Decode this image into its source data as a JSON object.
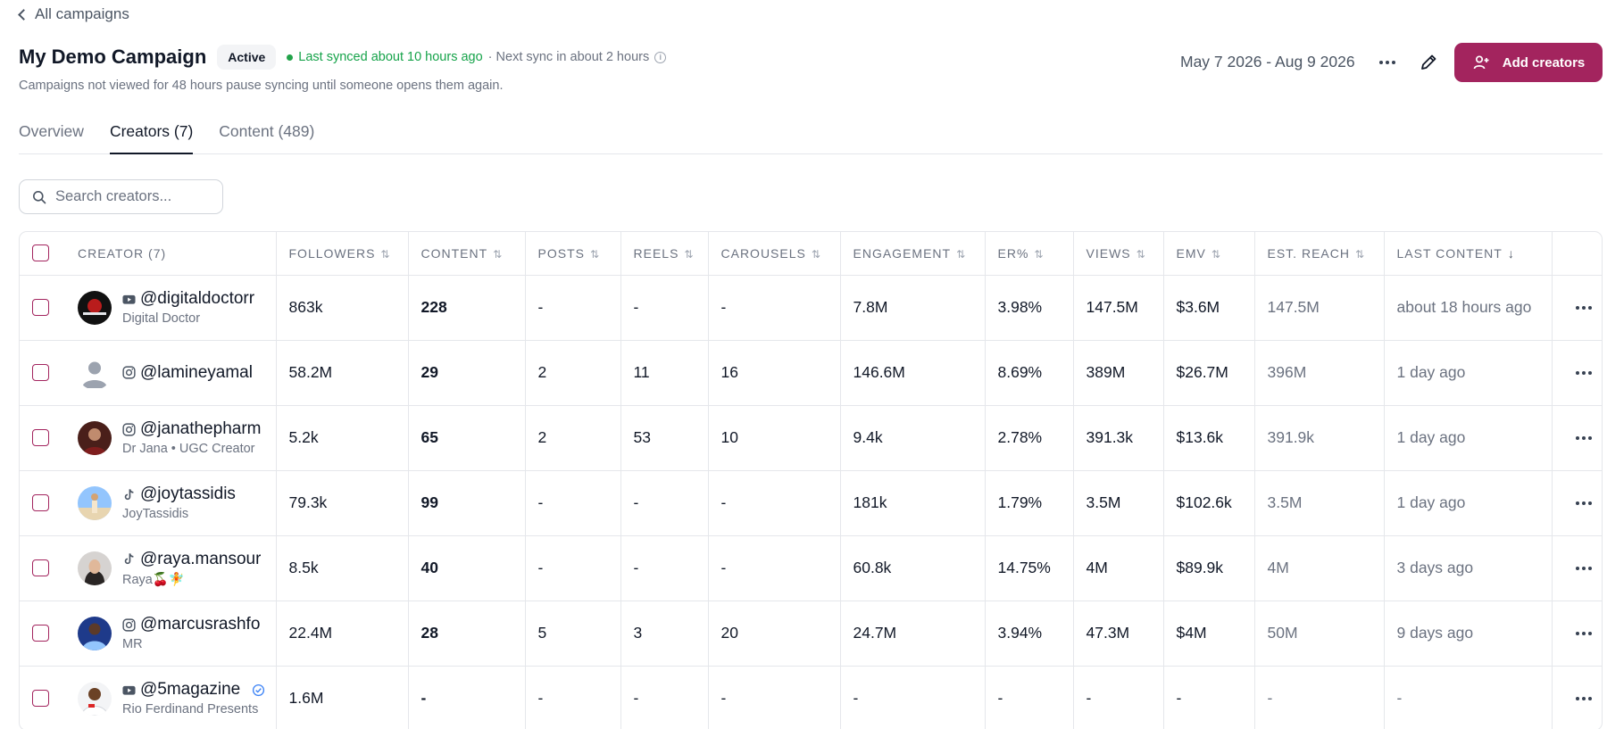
{
  "nav": {
    "back_label": "All campaigns"
  },
  "campaign": {
    "title": "My Demo Campaign",
    "status": "Active",
    "last_synced": "Last synced about 10 hours ago",
    "next_sync": "· Next sync in about 2 hours",
    "note": "Campaigns not viewed for 48 hours pause syncing until someone opens them again.",
    "date_range": "May 7 2026 - Aug 9 2026",
    "add_button": "Add creators"
  },
  "tabs": [
    {
      "label": "Overview",
      "active": false
    },
    {
      "label": "Creators (7)",
      "active": true
    },
    {
      "label": "Content (489)",
      "active": false
    }
  ],
  "search": {
    "placeholder": "Search creators..."
  },
  "columns": [
    "CREATOR (7)",
    "FOLLOWERS",
    "CONTENT",
    "POSTS",
    "REELS",
    "CAROUSELS",
    "ENGAGEMENT",
    "ER%",
    "VIEWS",
    "EMV",
    "EST. REACH",
    "LAST CONTENT"
  ],
  "creators": [
    {
      "handle": "@digitaldoctorr",
      "display": "Digital Doctor",
      "platform": "youtube-icon",
      "verified": false,
      "avatar": "avatar-dark",
      "followers": "863k",
      "content": "228",
      "posts": "-",
      "reels": "-",
      "carousels": "-",
      "engagement": "7.8M",
      "er": "3.98%",
      "views": "147.5M",
      "emv": "$3.6M",
      "reach": "147.5M",
      "last": "about 18 hours ago"
    },
    {
      "handle": "@lamineyamal",
      "display": "",
      "platform": "instagram-icon",
      "verified": false,
      "avatar": "avatar-placeholder",
      "followers": "58.2M",
      "content": "29",
      "posts": "2",
      "reels": "11",
      "carousels": "16",
      "engagement": "146.6M",
      "er": "8.69%",
      "views": "389M",
      "emv": "$26.7M",
      "reach": "396M",
      "last": "1 day ago"
    },
    {
      "handle": "@janathepharm",
      "display": "Dr Jana • UGC Creator",
      "platform": "instagram-icon",
      "verified": false,
      "avatar": "avatar-brown",
      "followers": "5.2k",
      "content": "65",
      "posts": "2",
      "reels": "53",
      "carousels": "10",
      "engagement": "9.4k",
      "er": "2.78%",
      "views": "391.3k",
      "emv": "$13.6k",
      "reach": "391.9k",
      "last": "1 day ago"
    },
    {
      "handle": "@joytassidis",
      "display": "JoyTassidis",
      "platform": "tiktok-icon",
      "verified": false,
      "avatar": "avatar-beach",
      "followers": "79.3k",
      "content": "99",
      "posts": "-",
      "reels": "-",
      "carousels": "-",
      "engagement": "181k",
      "er": "1.79%",
      "views": "3.5M",
      "emv": "$102.6k",
      "reach": "3.5M",
      "last": "1 day ago"
    },
    {
      "handle": "@raya.mansour",
      "display": "Raya🍒🧚",
      "platform": "tiktok-icon",
      "verified": false,
      "avatar": "avatar-portrait",
      "followers": "8.5k",
      "content": "40",
      "posts": "-",
      "reels": "-",
      "carousels": "-",
      "engagement": "60.8k",
      "er": "14.75%",
      "views": "4M",
      "emv": "$89.9k",
      "reach": "4M",
      "last": "3 days ago"
    },
    {
      "handle": "@marcusrashfo",
      "display": "MR",
      "platform": "instagram-icon",
      "verified": false,
      "avatar": "avatar-blue",
      "followers": "22.4M",
      "content": "28",
      "posts": "5",
      "reels": "3",
      "carousels": "20",
      "engagement": "24.7M",
      "er": "3.94%",
      "views": "47.3M",
      "emv": "$4M",
      "reach": "50M",
      "last": "9 days ago"
    },
    {
      "handle": "@5magazine",
      "display": "Rio Ferdinand Presents",
      "platform": "youtube-icon",
      "verified": true,
      "avatar": "avatar-light",
      "followers": "1.6M",
      "content": "-",
      "posts": "-",
      "reels": "-",
      "carousels": "-",
      "engagement": "-",
      "er": "-",
      "views": "-",
      "emv": "-",
      "reach": "-",
      "last": "-"
    }
  ],
  "colors": {
    "accent": "#a3245e",
    "success": "#16a34a",
    "muted": "#6b7280",
    "border": "#e5e7eb"
  }
}
